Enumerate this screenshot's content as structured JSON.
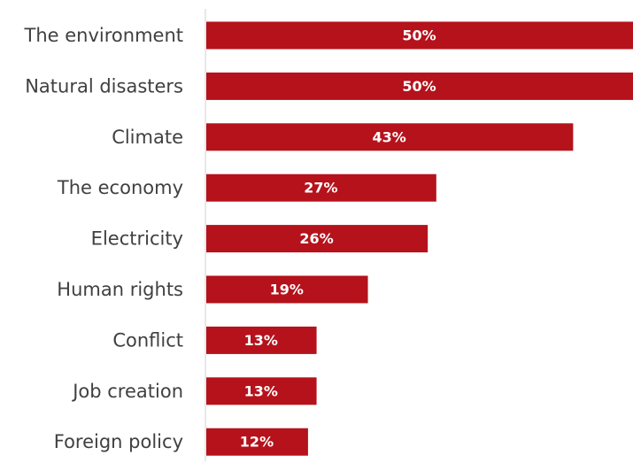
{
  "chart_data": {
    "type": "bar",
    "orientation": "horizontal",
    "categories": [
      "The environment",
      "Natural disasters",
      "Climate",
      "The economy",
      "Electricity",
      "Human rights",
      "Conflict",
      "Job creation",
      "Foreign policy"
    ],
    "values": [
      50,
      50,
      43,
      27,
      26,
      19,
      13,
      13,
      12
    ],
    "value_labels": [
      "50%",
      "50%",
      "43%",
      "27%",
      "26%",
      "19%",
      "13%",
      "13%",
      "12%"
    ],
    "unit": "%",
    "xlim": [
      0,
      50
    ],
    "grid": false,
    "legend": "none",
    "bar_color": "#b5121b",
    "label_color": "#404040",
    "axis_color": "#d9d9d9",
    "value_label_color": "#ffffff"
  }
}
